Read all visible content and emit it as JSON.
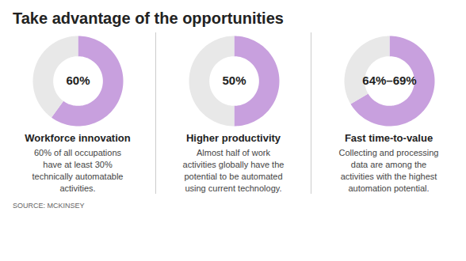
{
  "title": "Take advantage of the opportunities",
  "source": "SOURCE: MCKINSEY",
  "chart_data": [
    {
      "type": "donut",
      "title": "Workforce innovation",
      "subtitle": "60% of all occupations\nhave at least 30%\ntechnically automatable\nactivities.",
      "annotation": "60%",
      "values": [
        60,
        40
      ],
      "colors": [
        "#c8a0de",
        "#e8e8e8"
      ]
    },
    {
      "type": "donut",
      "title": "Higher productivity",
      "subtitle": "Almost half of work\nactivities globally have the\npotential to be automated\nusing current technology.",
      "annotation": "50%",
      "values": [
        50,
        50
      ],
      "colors": [
        "#c8a0de",
        "#e8e8e8"
      ]
    },
    {
      "type": "donut",
      "title": "Fast time-to-value",
      "subtitle": "Collecting and processing\ndata are among the\nactivities with the highest\nautomation potential.",
      "annotation": "64%–69%",
      "values": [
        66.5,
        33.5
      ],
      "colors": [
        "#c8a0de",
        "#e8e8e8"
      ]
    }
  ]
}
